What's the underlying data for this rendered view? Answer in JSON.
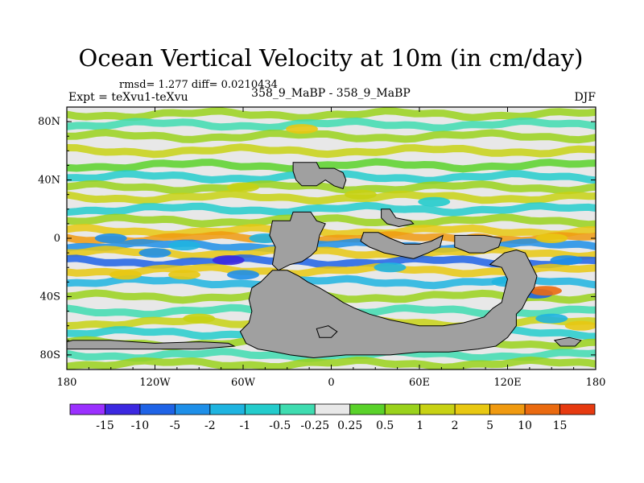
{
  "chart_data": {
    "type": "heatmap",
    "title": "Ocean Vertical Velocity at 10m (in cm/day)",
    "stats": "rmsd= 1.277 diff= 0.0210434",
    "left_label": "Expt = teXvu1-teXvu",
    "center_label": "358_9_MaBP - 358_9_MaBP",
    "right_label": "DJF",
    "xlabel": "",
    "ylabel": "",
    "xlim": [
      -180,
      180
    ],
    "ylim": [
      -90,
      90
    ],
    "x_ticks": [
      {
        "value": -180,
        "label": "180"
      },
      {
        "value": -120,
        "label": "120W"
      },
      {
        "value": -60,
        "label": "60W"
      },
      {
        "value": 0,
        "label": "0"
      },
      {
        "value": 60,
        "label": "60E"
      },
      {
        "value": 120,
        "label": "120E"
      },
      {
        "value": 180,
        "label": "180"
      }
    ],
    "y_ticks": [
      {
        "value": 80,
        "label": "80N"
      },
      {
        "value": 40,
        "label": "40N"
      },
      {
        "value": 0,
        "label": "0"
      },
      {
        "value": -40,
        "label": "40S"
      },
      {
        "value": -80,
        "label": "80S"
      }
    ],
    "colorbar": {
      "levels": [
        "-15",
        "-10",
        "-5",
        "-2",
        "-1",
        "-0.5",
        "-0.25",
        "0.25",
        "0.5",
        "1",
        "2",
        "5",
        "10",
        "15"
      ],
      "colors": [
        "#9b30ff",
        "#3c28e0",
        "#1f63e6",
        "#1e8fe8",
        "#1fb4e0",
        "#24cccc",
        "#3fdcb0",
        "#e8e8e8",
        "#5ad22a",
        "#9ad21c",
        "#c8d214",
        "#e8c812",
        "#f09a10",
        "#ea6a10",
        "#e63a10"
      ]
    },
    "land_color": "#a0a0a0",
    "ocean_bands": [
      {
        "lat": 85,
        "value": 0.6
      },
      {
        "lat": 78,
        "value": -0.4
      },
      {
        "lat": 70,
        "value": 0.7
      },
      {
        "lat": 60,
        "value": 1.5
      },
      {
        "lat": 50,
        "value": 0.3
      },
      {
        "lat": 42,
        "value": -0.6
      },
      {
        "lat": 35,
        "value": 0.8
      },
      {
        "lat": 28,
        "value": 1.2
      },
      {
        "lat": 20,
        "value": -0.7
      },
      {
        "lat": 12,
        "value": 0.6
      },
      {
        "lat": 5,
        "value": 3.5
      },
      {
        "lat": 0,
        "value": 7
      },
      {
        "lat": -5,
        "value": -3
      },
      {
        "lat": -10,
        "value": 4
      },
      {
        "lat": -16,
        "value": -6
      },
      {
        "lat": -22,
        "value": 2.5
      },
      {
        "lat": -30,
        "value": -1.5
      },
      {
        "lat": -40,
        "value": 0.7
      },
      {
        "lat": -50,
        "value": -0.5
      },
      {
        "lat": -58,
        "value": 1.5
      },
      {
        "lat": -65,
        "value": -0.8
      },
      {
        "lat": -72,
        "value": 0.6
      },
      {
        "lat": -80,
        "value": -0.3
      },
      {
        "lat": -86,
        "value": 0.5
      }
    ],
    "land_masses": [
      {
        "name": "north-island",
        "points": [
          [
            -26,
            52
          ],
          [
            -18,
            52
          ],
          [
            -10,
            52
          ],
          [
            -8,
            48
          ],
          [
            2,
            48
          ],
          [
            8,
            45
          ],
          [
            10,
            40
          ],
          [
            8,
            34
          ],
          [
            2,
            36
          ],
          [
            -4,
            40
          ],
          [
            -10,
            36
          ],
          [
            -20,
            36
          ],
          [
            -24,
            40
          ],
          [
            -26,
            46
          ]
        ]
      },
      {
        "name": "central-landmass",
        "points": [
          [
            -40,
            12
          ],
          [
            -28,
            12
          ],
          [
            -26,
            18
          ],
          [
            -14,
            18
          ],
          [
            -10,
            12
          ],
          [
            -4,
            10
          ],
          [
            -8,
            2
          ],
          [
            -10,
            -8
          ],
          [
            -14,
            -12
          ],
          [
            -20,
            -16
          ],
          [
            -28,
            -18
          ],
          [
            -36,
            -22
          ],
          [
            -40,
            -18
          ],
          [
            -38,
            -6
          ],
          [
            -42,
            2
          ]
        ]
      },
      {
        "name": "east-island",
        "points": [
          [
            34,
            20
          ],
          [
            40,
            20
          ],
          [
            44,
            14
          ],
          [
            54,
            12
          ],
          [
            56,
            10
          ],
          [
            46,
            8
          ],
          [
            38,
            10
          ],
          [
            34,
            14
          ]
        ]
      },
      {
        "name": "mid-east-block",
        "points": [
          [
            22,
            4
          ],
          [
            32,
            4
          ],
          [
            40,
            0
          ],
          [
            50,
            -4
          ],
          [
            60,
            -4
          ],
          [
            68,
            -2
          ],
          [
            76,
            2
          ],
          [
            74,
            -6
          ],
          [
            66,
            -10
          ],
          [
            56,
            -14
          ],
          [
            46,
            -12
          ],
          [
            36,
            -10
          ],
          [
            26,
            -6
          ],
          [
            20,
            -2
          ]
        ]
      },
      {
        "name": "east-strip",
        "points": [
          [
            84,
            2
          ],
          [
            104,
            2
          ],
          [
            116,
            0
          ],
          [
            114,
            -6
          ],
          [
            104,
            -10
          ],
          [
            94,
            -10
          ],
          [
            84,
            -6
          ]
        ]
      },
      {
        "name": "west-strip",
        "points": [
          [
            -180,
            -71
          ],
          [
            -176,
            -70
          ],
          [
            -150,
            -70
          ],
          [
            -120,
            -72
          ],
          [
            -90,
            -71
          ],
          [
            -70,
            -72
          ],
          [
            -66,
            -74
          ],
          [
            -90,
            -76
          ],
          [
            -130,
            -76
          ],
          [
            -160,
            -76
          ],
          [
            -180,
            -76
          ]
        ]
      },
      {
        "name": "southern-continent",
        "points": [
          [
            -40,
            -22
          ],
          [
            -30,
            -22
          ],
          [
            -22,
            -26
          ],
          [
            -16,
            -30
          ],
          [
            -8,
            -34
          ],
          [
            2,
            -40
          ],
          [
            8,
            -44
          ],
          [
            16,
            -48
          ],
          [
            26,
            -52
          ],
          [
            40,
            -56
          ],
          [
            60,
            -60
          ],
          [
            76,
            -60
          ],
          [
            90,
            -58
          ],
          [
            104,
            -54
          ],
          [
            110,
            -48
          ],
          [
            116,
            -44
          ],
          [
            118,
            -36
          ],
          [
            120,
            -28
          ],
          [
            116,
            -20
          ],
          [
            108,
            -18
          ],
          [
            118,
            -10
          ],
          [
            126,
            -8
          ],
          [
            132,
            -10
          ],
          [
            136,
            -18
          ],
          [
            140,
            -26
          ],
          [
            138,
            -34
          ],
          [
            134,
            -40
          ],
          [
            130,
            -48
          ],
          [
            126,
            -52
          ],
          [
            126,
            -60
          ],
          [
            120,
            -68
          ],
          [
            112,
            -74
          ],
          [
            100,
            -76
          ],
          [
            80,
            -78
          ],
          [
            60,
            -78
          ],
          [
            40,
            -80
          ],
          [
            10,
            -80
          ],
          [
            -12,
            -82
          ],
          [
            -28,
            -80
          ],
          [
            -38,
            -78
          ],
          [
            -50,
            -76
          ],
          [
            -58,
            -72
          ],
          [
            -62,
            -64
          ],
          [
            -56,
            -58
          ],
          [
            -54,
            -50
          ],
          [
            -56,
            -42
          ],
          [
            -54,
            -34
          ],
          [
            -48,
            -30
          ]
        ]
      },
      {
        "name": "southwest-islet",
        "points": [
          [
            -10,
            -62
          ],
          [
            -2,
            -60
          ],
          [
            4,
            -64
          ],
          [
            0,
            -68
          ],
          [
            -8,
            -68
          ]
        ]
      },
      {
        "name": "southeast-islet",
        "points": [
          [
            152,
            -70
          ],
          [
            162,
            -68
          ],
          [
            170,
            -70
          ],
          [
            166,
            -74
          ],
          [
            156,
            -74
          ]
        ]
      }
    ],
    "patches": [
      {
        "lon": -150,
        "lat": 0,
        "value": -3
      },
      {
        "lon": -120,
        "lat": -10,
        "value": -5
      },
      {
        "lon": -100,
        "lat": -5,
        "value": -2
      },
      {
        "lon": -70,
        "lat": -15,
        "value": -11
      },
      {
        "lon": -60,
        "lat": -25,
        "value": -3
      },
      {
        "lon": -140,
        "lat": -25,
        "value": 3
      },
      {
        "lon": -100,
        "lat": -25,
        "value": 2
      },
      {
        "lon": -45,
        "lat": 0,
        "value": -2
      },
      {
        "lon": -20,
        "lat": 75,
        "value": 3
      },
      {
        "lon": -60,
        "lat": 35,
        "value": 1.5
      },
      {
        "lon": 20,
        "lat": 30,
        "value": 1.2
      },
      {
        "lon": 70,
        "lat": 25,
        "value": -0.6
      },
      {
        "lon": 100,
        "lat": 0,
        "value": 6
      },
      {
        "lon": 150,
        "lat": 0,
        "value": 3
      },
      {
        "lon": 160,
        "lat": -15,
        "value": -3
      },
      {
        "lon": 120,
        "lat": -30,
        "value": -2
      },
      {
        "lon": 140,
        "lat": -38,
        "value": -8
      },
      {
        "lon": 146,
        "lat": -36,
        "value": 14
      },
      {
        "lon": 40,
        "lat": -20,
        "value": -1.5
      },
      {
        "lon": -90,
        "lat": -55,
        "value": 1.5
      },
      {
        "lon": 150,
        "lat": -55,
        "value": -1.5
      },
      {
        "lon": 170,
        "lat": -60,
        "value": 2.5
      }
    ]
  }
}
